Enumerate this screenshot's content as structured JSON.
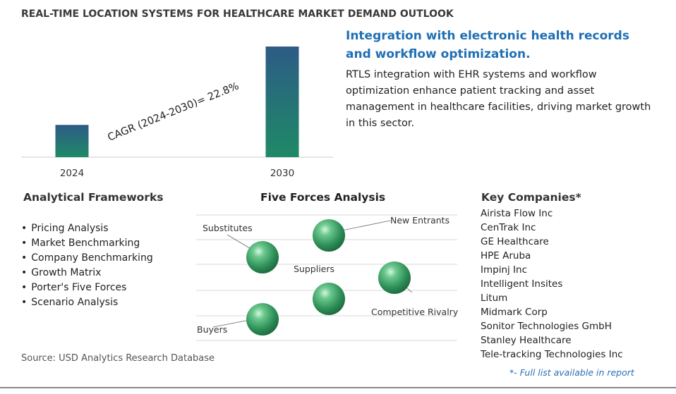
{
  "main_title": "REAL-TIME LOCATION SYSTEMS FOR HEALTHCARE MARKET DEMAND OUTLOOK",
  "chart_data": {
    "type": "bar",
    "categories": [
      "2024",
      "2030"
    ],
    "values": [
      1.0,
      3.43
    ],
    "annotation": "CAGR (2024-2030)=   22.8%",
    "title": "",
    "xlabel": "",
    "ylabel": "",
    "colors": {
      "bar_top": "#2d5b86",
      "bar_bottom": "#1f8a66"
    }
  },
  "headline": "Integration with electronic health records and workflow optimization.",
  "description": "RTLS integration with EHR systems and workflow optimization enhance patient tracking and asset management in healthcare facilities, driving market growth in this sector.",
  "analytical_frameworks": {
    "title": "Analytical Frameworks",
    "items": [
      "Pricing Analysis",
      "Market Benchmarking",
      "Company Benchmarking",
      "Growth Matrix",
      "Porter's Five Forces",
      "Scenario Analysis"
    ]
  },
  "five_forces": {
    "title": "Five Forces Analysis",
    "labels": {
      "substitutes": "Substitutes",
      "new_entrants": "New Entrants",
      "suppliers": "Suppliers",
      "competitive_rivalry": "Competitive Rivalry",
      "buyers": "Buyers"
    },
    "sphere_color": "#3aa36a"
  },
  "key_companies": {
    "title": "Key Companies*",
    "items": [
      "Airista Flow Inc",
      "CenTrak Inc",
      "GE Healthcare",
      "HPE Aruba",
      "Impinj Inc",
      "Intelligent Insites",
      "Litum",
      "Midmark Corp",
      "Sonitor Technologies GmbH",
      "Stanley Healthcare",
      "Tele-tracking Technologies Inc"
    ],
    "note": "*- Full list available in report"
  },
  "source": "Source: USD Analytics Research Database"
}
